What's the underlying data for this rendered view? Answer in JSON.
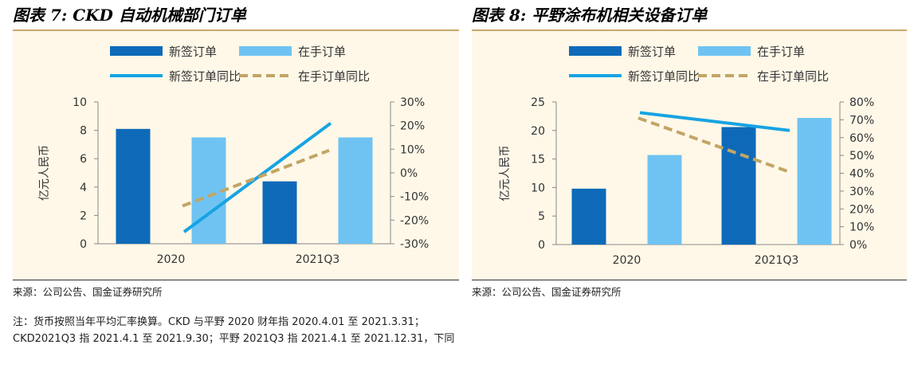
{
  "panels": [
    {
      "title": "图表 7:  CKD 自动机械部门订单",
      "source": "来源：公司公告、国金证券研究所"
    },
    {
      "title": "图表 8:  平野涂布机相关设备订单",
      "source": "来源：公司公告、国金证券研究所"
    }
  ],
  "note": "注：货币按照当年平均汇率换算。CKD 与平野 2020 财年指 2020.4.01 至 2021.3.31；CKD2021Q3 指 2021.4.1 至 2021.9.30；平野 2021Q3 指 2021.4.1 至 2021.12.31，下同",
  "colors": {
    "new_orders": "#0e6ab8",
    "backlog": "#6fc3f2",
    "new_yoy": "#17a3e3",
    "backlog_yoy": "#c2a566"
  },
  "chart_data": [
    {
      "type": "bar",
      "categories": [
        "2020",
        "2021Q3"
      ],
      "ylabel": "亿元人民币",
      "ylim": [
        0,
        10
      ],
      "yticks": [
        "0",
        "2",
        "4",
        "6",
        "8",
        "10"
      ],
      "y2lim": [
        -0.3,
        0.3
      ],
      "y2ticks": [
        "-30%",
        "-20%",
        "-10%",
        "0%",
        "10%",
        "20%",
        "30%"
      ],
      "legend_position": "top",
      "series": [
        {
          "name": "新签订单",
          "kind": "bar",
          "axis": "left",
          "values": [
            8.1,
            4.4
          ]
        },
        {
          "name": "在手订单",
          "kind": "bar",
          "axis": "left",
          "values": [
            7.5,
            7.5
          ]
        },
        {
          "name": "新签订单同比",
          "kind": "line",
          "axis": "right",
          "values": [
            -0.25,
            0.21
          ]
        },
        {
          "name": "在手订单同比",
          "kind": "dashed-line",
          "axis": "right",
          "values": [
            -0.14,
            0.095
          ]
        }
      ]
    },
    {
      "type": "bar",
      "categories": [
        "2020",
        "2021Q3"
      ],
      "ylabel": "亿元人民币",
      "ylim": [
        0,
        25
      ],
      "yticks": [
        "0",
        "5",
        "10",
        "15",
        "20",
        "25"
      ],
      "y2lim": [
        0,
        0.8
      ],
      "y2ticks": [
        "0%",
        "10%",
        "20%",
        "30%",
        "40%",
        "50%",
        "60%",
        "70%",
        "80%"
      ],
      "legend_position": "top",
      "series": [
        {
          "name": "新签订单",
          "kind": "bar",
          "axis": "left",
          "values": [
            9.8,
            20.6
          ]
        },
        {
          "name": "在手订单",
          "kind": "bar",
          "axis": "left",
          "values": [
            15.7,
            22.2
          ]
        },
        {
          "name": "新签订单同比",
          "kind": "line",
          "axis": "right",
          "values": [
            0.74,
            0.64
          ]
        },
        {
          "name": "在手订单同比",
          "kind": "dashed-line",
          "axis": "right",
          "values": [
            0.71,
            0.41
          ]
        }
      ]
    }
  ]
}
